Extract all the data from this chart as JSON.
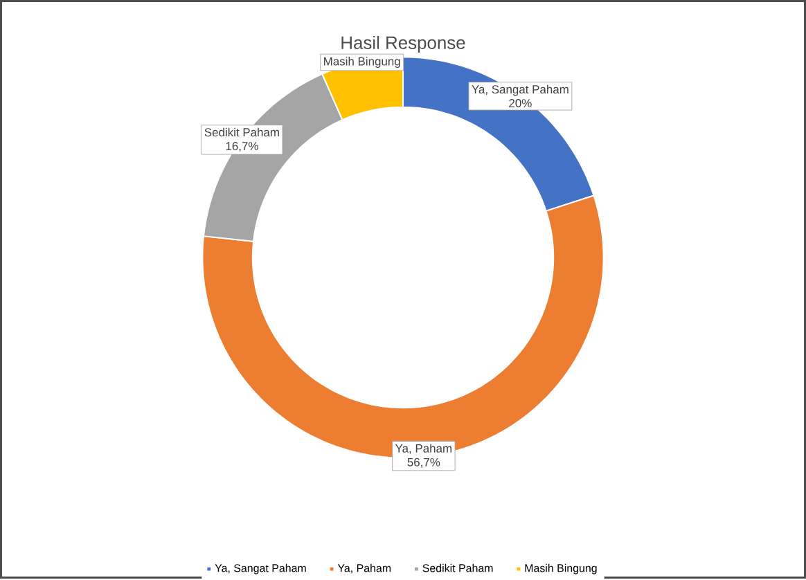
{
  "chart_data": {
    "type": "donut",
    "title": "Hasil Response",
    "categories": [
      "Ya, Sangat Paham",
      "Ya, Paham",
      "Sedikit Paham",
      "Masih Bingung"
    ],
    "values": [
      20,
      56.7,
      16.7,
      6.6
    ],
    "value_labels": [
      "20%",
      "56,7%",
      "16,7%",
      null
    ],
    "colors": [
      "#4472c4",
      "#ed7d31",
      "#a5a5a5",
      "#ffc000"
    ],
    "legend": "bottom"
  }
}
